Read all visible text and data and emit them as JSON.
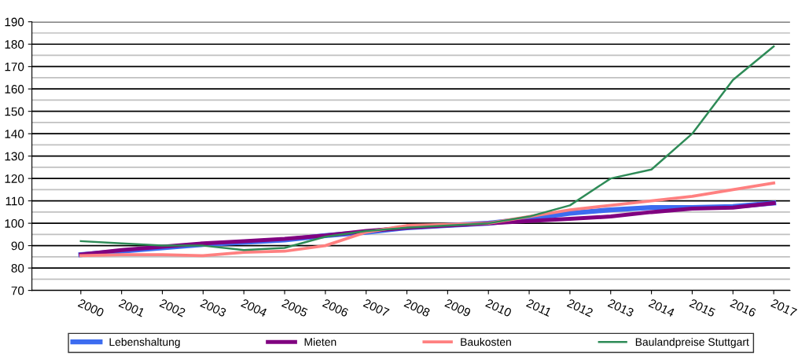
{
  "chart_data": {
    "type": "line",
    "categories": [
      "2000",
      "2001",
      "2002",
      "2003",
      "2004",
      "2005",
      "2006",
      "2007",
      "2008",
      "2009",
      "2010",
      "2011",
      "2012",
      "2013",
      "2014",
      "2015",
      "2016",
      "2017"
    ],
    "series": [
      {
        "name": "Lebenshaltung",
        "color": "#3c6cf0",
        "values": [
          86,
          87.5,
          89,
          90.5,
          91.5,
          92.5,
          94.5,
          96,
          98,
          99,
          100,
          102,
          104.5,
          106,
          107,
          107,
          107.5,
          109
        ]
      },
      {
        "name": "Mieten",
        "color": "#800080",
        "values": [
          86,
          88,
          89.5,
          91,
          92,
          93,
          94.5,
          96.5,
          98,
          99,
          100,
          101,
          102,
          103,
          105,
          106.5,
          107,
          109
        ]
      },
      {
        "name": "Baukosten",
        "color": "#ff8080",
        "values": [
          85.5,
          86,
          86,
          85.5,
          87,
          87.5,
          90,
          96,
          99,
          99.5,
          100,
          103,
          106,
          108,
          110,
          112,
          115,
          118
        ]
      },
      {
        "name": "Baulandpreise Stuttgart",
        "color": "#2e8b57",
        "values": [
          92,
          91,
          90,
          90,
          88,
          89,
          94,
          96.5,
          98,
          99,
          100,
          103,
          108,
          120,
          124,
          140,
          164,
          179
        ]
      }
    ],
    "ylim": [
      70,
      190
    ],
    "yticks": [
      70,
      80,
      90,
      100,
      110,
      120,
      130,
      140,
      150,
      160,
      170,
      180,
      190
    ],
    "grid": "y",
    "legend": "bottom",
    "marker": "none",
    "line_style": "solid"
  }
}
